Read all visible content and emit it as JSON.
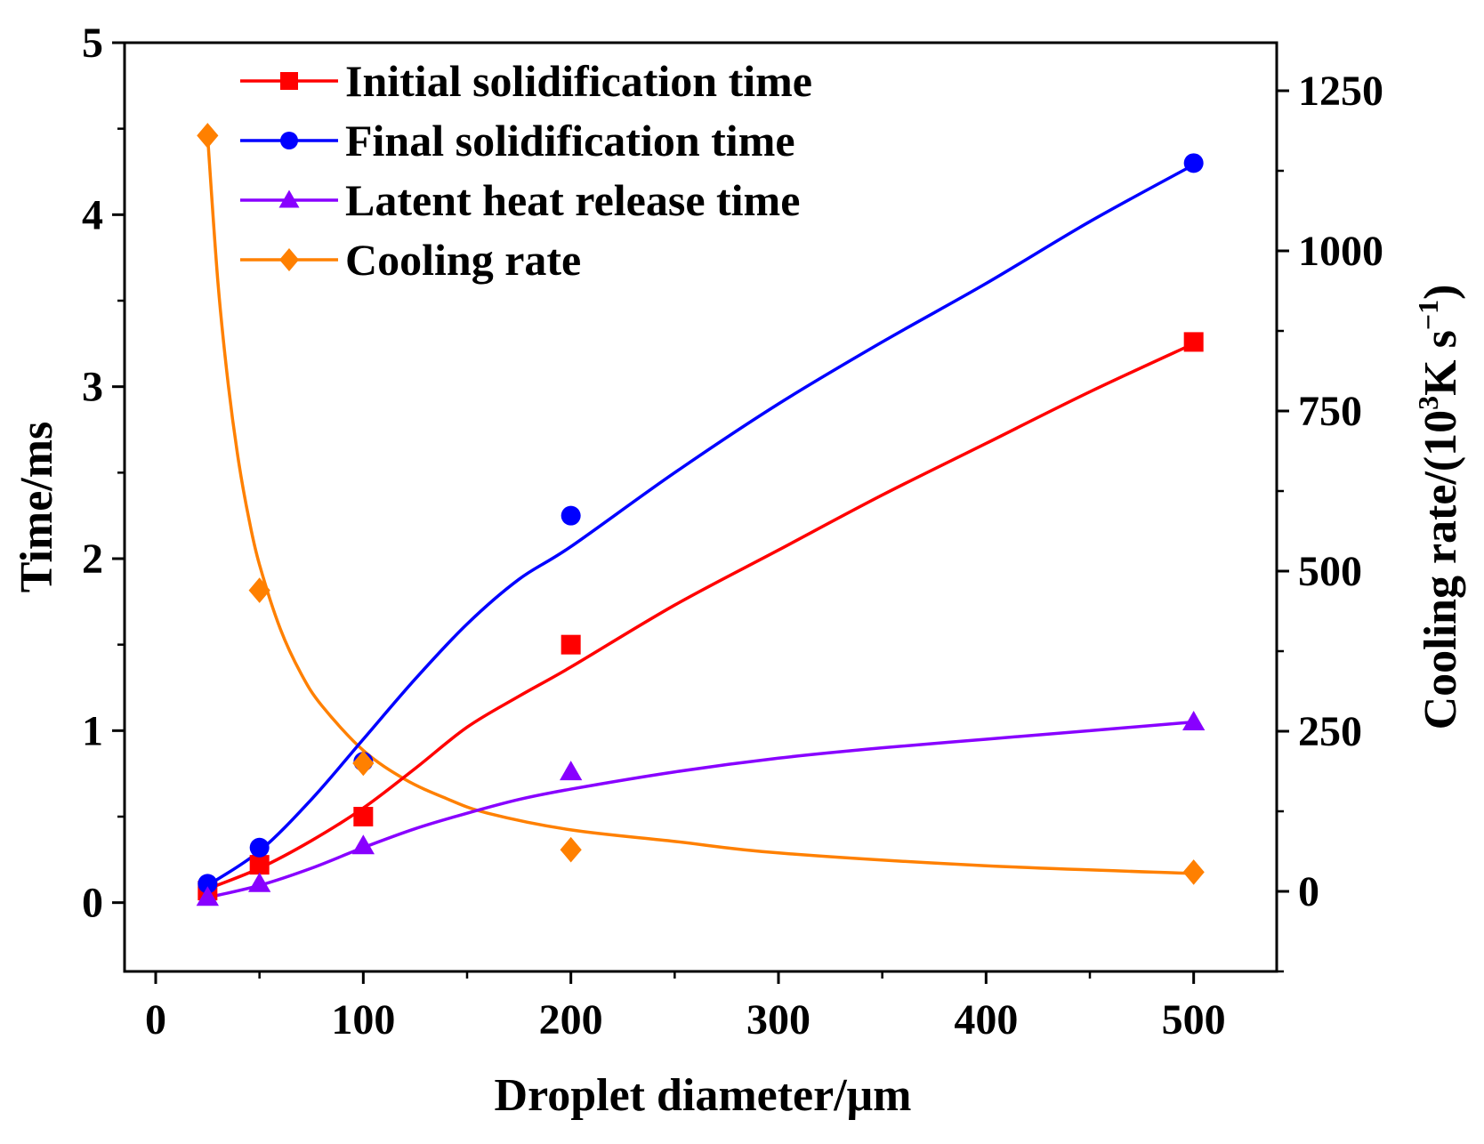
{
  "chart_data": {
    "type": "scatter",
    "xlabel": "Droplet diameter/μm",
    "ylabel_left": "Time/ms",
    "ylabel_right": {
      "prefix": "Cooling rate/(10",
      "sup": "3",
      "middle": "K s",
      "sup2": "−1",
      "suffix": ")"
    },
    "xlim": [
      -15,
      540
    ],
    "ylim_left": [
      -0.4,
      5
    ],
    "ylim_right": [
      -125,
      1325
    ],
    "x_ticks": [
      0,
      100,
      200,
      300,
      400,
      500
    ],
    "y_left_ticks": [
      0,
      1,
      2,
      3,
      4,
      5
    ],
    "y_right_ticks": [
      0,
      250,
      500,
      750,
      1000,
      1250
    ],
    "legend_position": "top-left",
    "series": [
      {
        "name": "Initial solidification time",
        "axis": "left",
        "color": "#ff0000",
        "marker": "square",
        "x": [
          25,
          50,
          100,
          200,
          500
        ],
        "y": [
          0.07,
          0.22,
          0.5,
          1.5,
          3.26
        ],
        "fit_x": [
          25,
          50,
          75,
          100,
          125,
          150,
          175,
          200,
          250,
          300,
          350,
          400,
          450,
          500
        ],
        "fit_y": [
          0.08,
          0.2,
          0.36,
          0.55,
          0.78,
          1.02,
          1.2,
          1.37,
          1.73,
          2.05,
          2.37,
          2.67,
          2.97,
          3.25
        ]
      },
      {
        "name": "Final solidification time",
        "axis": "left",
        "color": "#0000ff",
        "marker": "circle",
        "x": [
          25,
          50,
          100,
          200,
          500
        ],
        "y": [
          0.11,
          0.32,
          0.82,
          2.25,
          4.3
        ],
        "fit_x": [
          25,
          50,
          75,
          100,
          125,
          150,
          175,
          200,
          250,
          300,
          350,
          400,
          450,
          500
        ],
        "fit_y": [
          0.1,
          0.3,
          0.6,
          0.95,
          1.3,
          1.62,
          1.88,
          2.07,
          2.5,
          2.9,
          3.26,
          3.6,
          3.96,
          4.29
        ]
      },
      {
        "name": "Latent heat release time",
        "axis": "left",
        "color": "#8800ff",
        "marker": "triangle",
        "x": [
          25,
          50,
          100,
          200,
          500
        ],
        "y": [
          0.03,
          0.11,
          0.33,
          0.76,
          1.05
        ],
        "fit_x": [
          25,
          50,
          75,
          100,
          125,
          150,
          175,
          200,
          250,
          300,
          350,
          400,
          450,
          500
        ],
        "fit_y": [
          0.03,
          0.1,
          0.2,
          0.32,
          0.43,
          0.52,
          0.6,
          0.66,
          0.76,
          0.84,
          0.9,
          0.95,
          1.0,
          1.05
        ]
      },
      {
        "name": "Cooling rate",
        "axis": "right",
        "color": "#ff8000",
        "marker": "diamond",
        "x": [
          25,
          50,
          100,
          200,
          500
        ],
        "y": [
          1180,
          470,
          200,
          65,
          30
        ],
        "fit_x": [
          25,
          30,
          35,
          40,
          45,
          50,
          60,
          70,
          80,
          100,
          120,
          140,
          160,
          200,
          250,
          300,
          400,
          500
        ],
        "fit_y": [
          1180,
          950,
          790,
          670,
          580,
          510,
          410,
          340,
          290,
          220,
          175,
          145,
          122,
          96,
          78,
          60,
          40,
          28
        ]
      }
    ]
  }
}
